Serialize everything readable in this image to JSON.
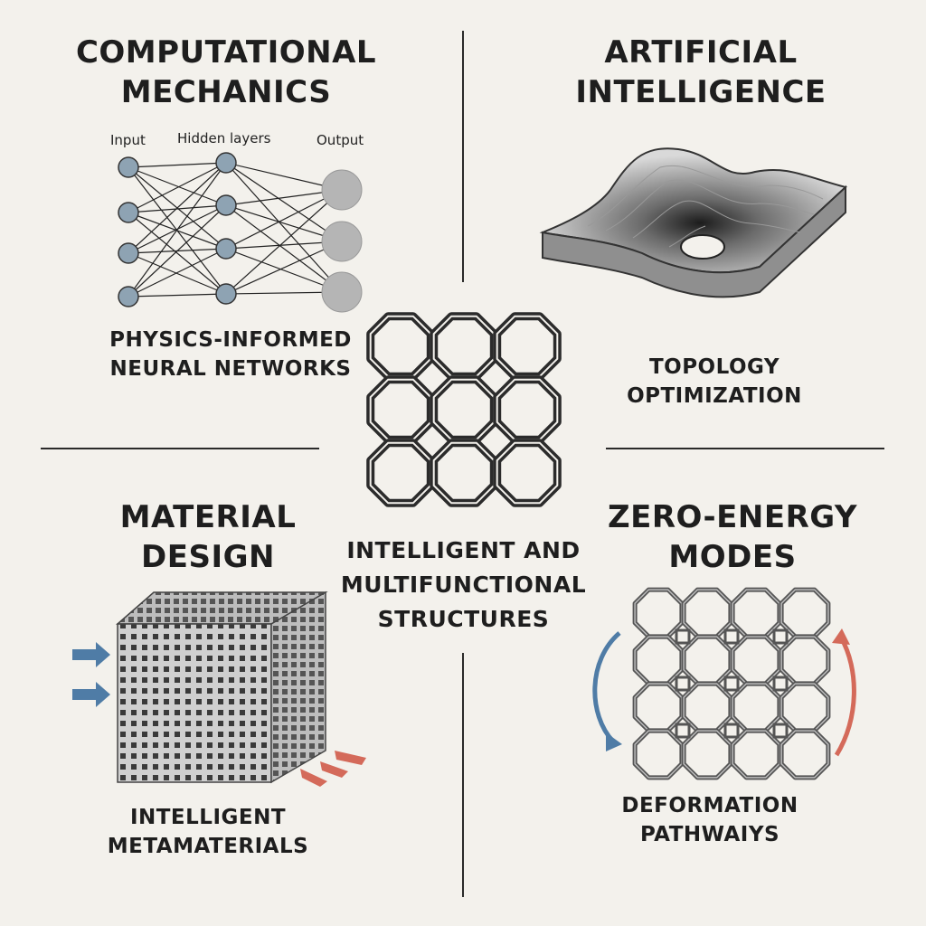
{
  "center": {
    "line1": "INTELLIGENT AND",
    "line2": "MULTIFUNCTIONAL",
    "line3": "STRUCTURES"
  },
  "q1": {
    "title1": "COMPUTATIONAL",
    "title2": "MECHANICS",
    "input": "Input",
    "hidden": "Hidden layers",
    "output": "Output",
    "sub1": "PHYSICS-INFORMED",
    "sub2": "NEURAL NETWORKS"
  },
  "q2": {
    "title1": "ARTIFICIAL",
    "title2": "INTELLIGENCE",
    "sub1": "TOPOLOGY",
    "sub2": "OPTIMIZATION"
  },
  "q3": {
    "title1": "MATERIAL",
    "title2": "DESIGN",
    "sub1": "INTELLIGENT",
    "sub2": "METAMATERIALS"
  },
  "q4": {
    "title1": "ZERO-ENERGY",
    "title2": "MODES",
    "sub1": "DEFORMATION",
    "sub2": "PATHWAIYS"
  },
  "colors": {
    "blue_arrow": "#4f7ca6",
    "red_arrow": "#d46a5a",
    "node": "#8ea3b3",
    "output_node": "#b5b5b5"
  }
}
